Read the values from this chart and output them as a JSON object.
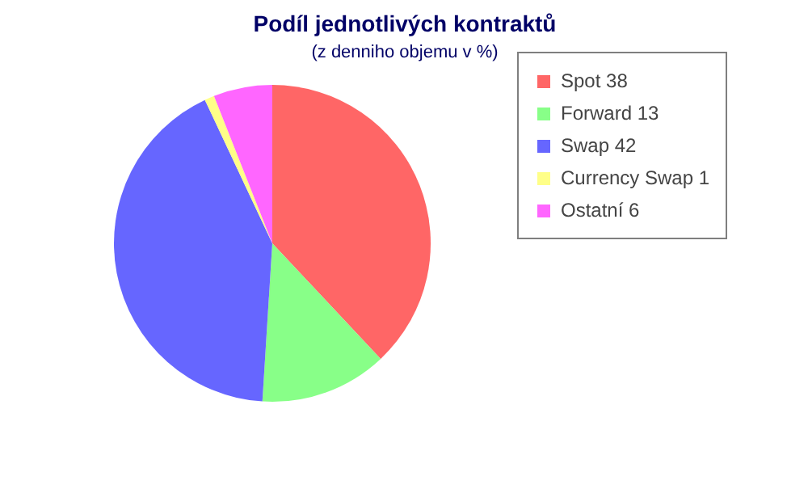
{
  "chart_data": {
    "type": "pie",
    "title": "Podíl jednotlivých kontraktů",
    "subtitle": "(z denniho objemu v %)",
    "categories": [
      "Spot 38",
      "Forward 13",
      "Swap 42",
      "Currency Swap 1",
      "Ostatní 6"
    ],
    "values": [
      38,
      13,
      42,
      1,
      6
    ],
    "colors": [
      "#ff6666",
      "#88ff88",
      "#6666ff",
      "#ffff88",
      "#ff66ff"
    ],
    "legend": "top right"
  }
}
